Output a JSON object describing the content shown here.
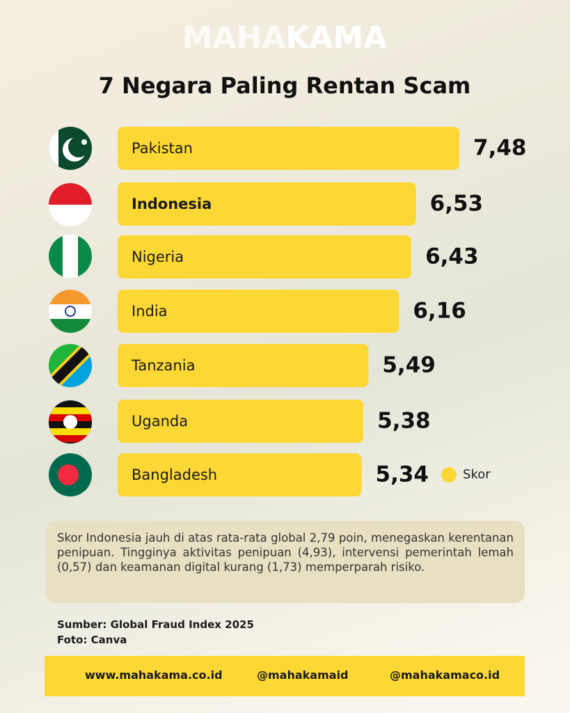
{
  "logo": {
    "light": "MAHA",
    "bold": "KAMA"
  },
  "chart_data": {
    "type": "bar",
    "orientation": "horizontal",
    "title": "7 Negara Paling Rentan Scam",
    "categories": [
      "Pakistan",
      "Indonesia",
      "Nigeria",
      "India",
      "Tanzania",
      "Uganda",
      "Bangladesh"
    ],
    "series": [
      {
        "name": "Skor",
        "color": "#fdd835",
        "values": [
          7.48,
          6.53,
          6.43,
          6.16,
          5.49,
          5.38,
          5.34
        ],
        "value_labels": [
          "7,48",
          "6,53",
          "6,43",
          "6,16",
          "5,49",
          "5,38",
          "5,34"
        ]
      }
    ],
    "legend": "bottom-right"
  },
  "note": "Skor Indonesia jauh di atas rata-rata global 2,79 poin, menegaskan kerentanan penipuan. Tingginya aktivitas penipuan (4,93), intervensi pemerintah lemah (0,57) dan keamanan digital kurang (1,73) memperparah risiko.",
  "source": [
    "Sumber: Global Fraud Index 2025",
    "Foto: Canva"
  ],
  "footer": {
    "website": "www.mahakama.co.id",
    "instagram": "@mahakamaid",
    "tiktok": "@mahakamaco.id"
  }
}
